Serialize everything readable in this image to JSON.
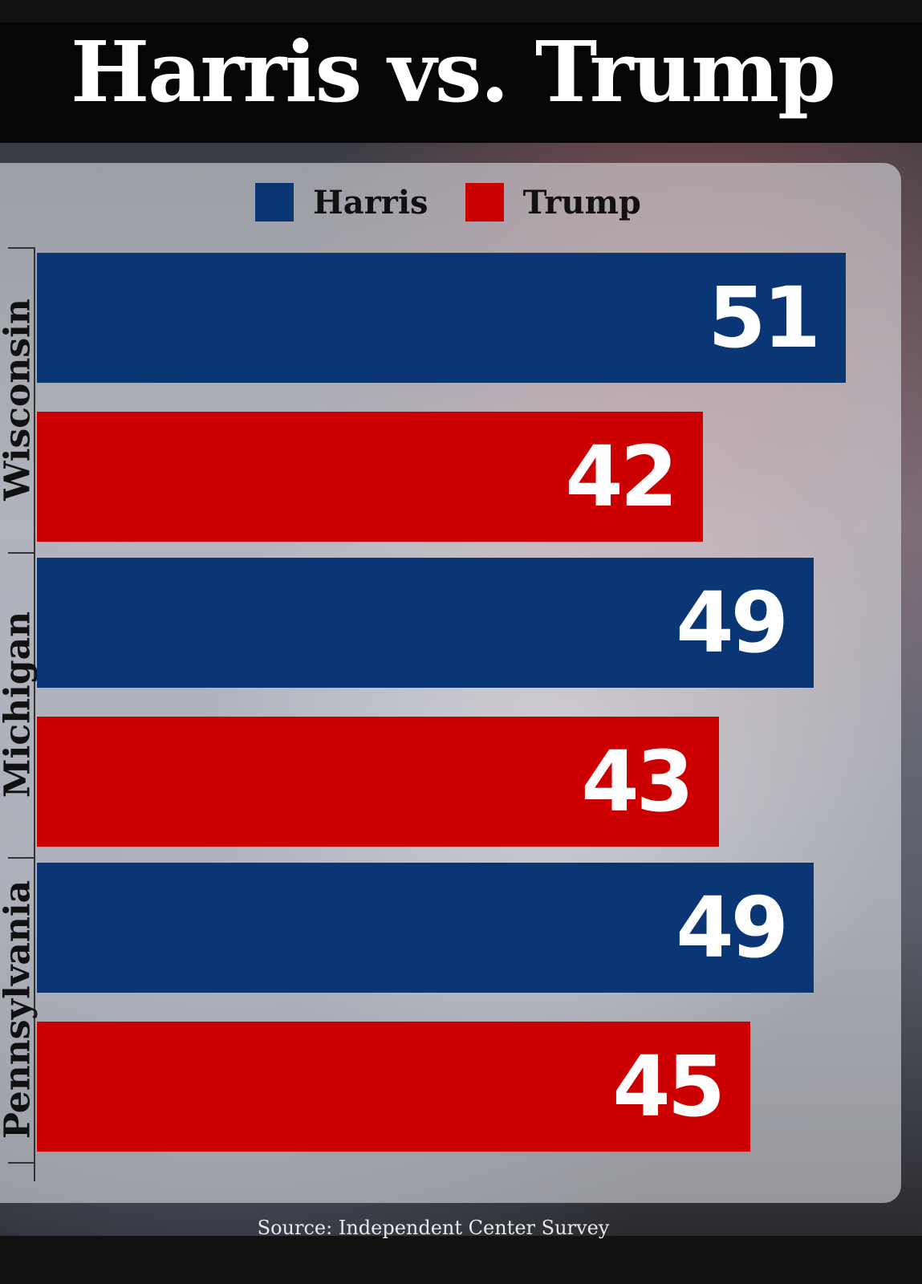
{
  "title": "Harris vs. Trump",
  "source": "Source: Independent Center Survey",
  "colors": {
    "harris": "#0b3675",
    "trump": "#cc0000"
  },
  "chart_data": {
    "type": "bar",
    "orientation": "horizontal",
    "categories": [
      "Wisconsin",
      "Michigan",
      "Pennsylvania"
    ],
    "series": [
      {
        "name": "Harris",
        "values": [
          51,
          49,
          49
        ]
      },
      {
        "name": "Trump",
        "values": [
          42,
          43,
          45
        ]
      }
    ],
    "legend": "top-center",
    "grid": false,
    "data_labels": true,
    "title": "Harris vs. Trump"
  }
}
